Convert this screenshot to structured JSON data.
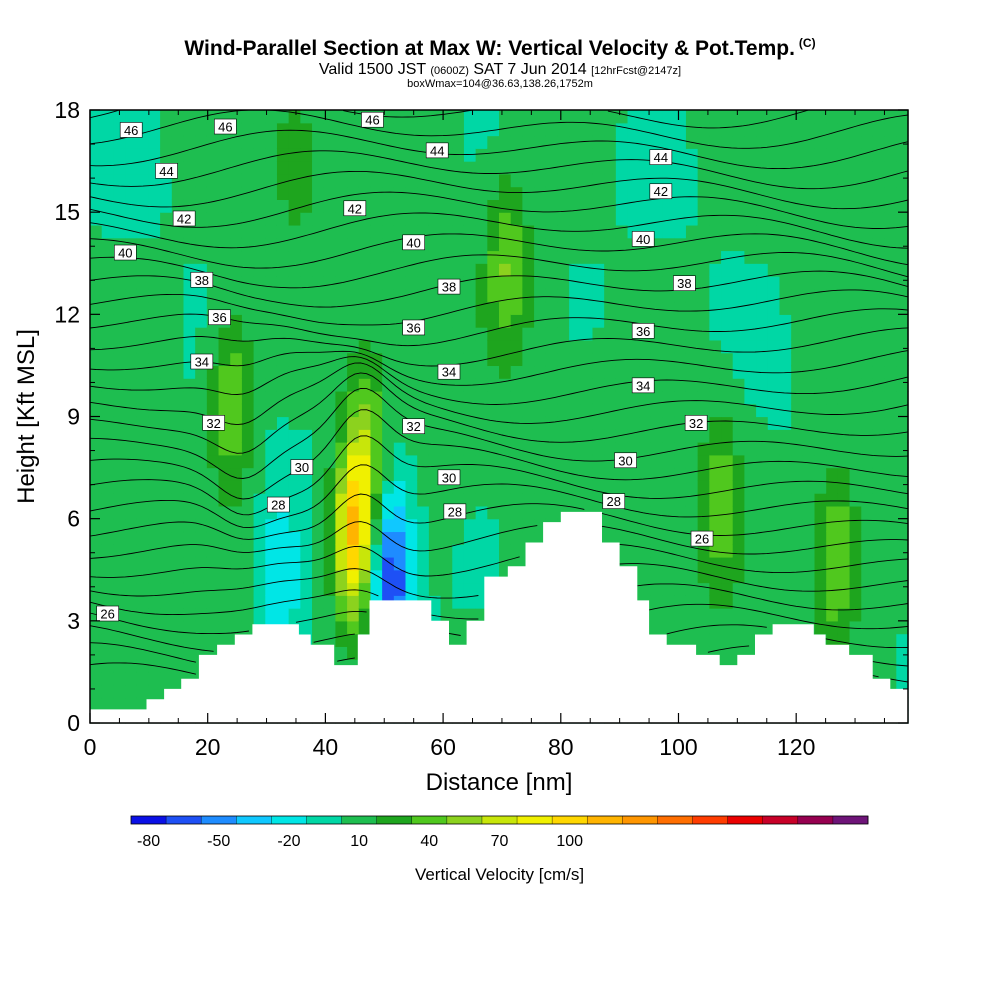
{
  "header": {
    "title": "Wind-Parallel Section at Max W: Vertical Velocity & Pot.Temp.",
    "copyright": "(C)",
    "valid_a": "Valid 1500 JST",
    "valid_zulu": "(0600Z)",
    "valid_b": "SAT 7 Jun 2014",
    "forecast": "[12hrFcst@2147z]",
    "box": "boxWmax=104@36.63,138.26,1752m"
  },
  "chart_data": {
    "type": "heatmap",
    "xlabel": "Distance [nm]",
    "ylabel": "Height [Kft MSL]",
    "xlim": [
      0,
      139
    ],
    "ylim": [
      0,
      18
    ],
    "x_ticks": [
      0,
      20,
      40,
      60,
      80,
      100,
      120
    ],
    "y_ticks": [
      0,
      3,
      6,
      9,
      12,
      15,
      18
    ],
    "colorbar": {
      "title": "Vertical Velocity [cm/s]",
      "tick_values": [
        -80,
        -50,
        -20,
        10,
        40,
        70,
        100
      ],
      "colors": [
        "#0a10e6",
        "#1e50f5",
        "#1e8cff",
        "#10c8ff",
        "#00e6e6",
        "#00d7a5",
        "#1ebe50",
        "#1ea51e",
        "#50c81e",
        "#8cd21e",
        "#c8e60a",
        "#f0f000",
        "#ffd700",
        "#ffb400",
        "#ff9600",
        "#ff6e00",
        "#ff3c00",
        "#eb0000",
        "#c80028",
        "#960050",
        "#6e1478"
      ]
    },
    "theta_contour_labels": [
      {
        "x": 7,
        "y": 17.4,
        "v": "46"
      },
      {
        "x": 23,
        "y": 17.5,
        "v": "46"
      },
      {
        "x": 48,
        "y": 17.7,
        "v": "46"
      },
      {
        "x": 13,
        "y": 16.2,
        "v": "44"
      },
      {
        "x": 59,
        "y": 16.8,
        "v": "44"
      },
      {
        "x": 97,
        "y": 16.6,
        "v": "44"
      },
      {
        "x": 16,
        "y": 14.8,
        "v": "42"
      },
      {
        "x": 45,
        "y": 15.1,
        "v": "42"
      },
      {
        "x": 97,
        "y": 15.6,
        "v": "42"
      },
      {
        "x": 6,
        "y": 13.8,
        "v": "40"
      },
      {
        "x": 55,
        "y": 14.1,
        "v": "40"
      },
      {
        "x": 94,
        "y": 14.2,
        "v": "40"
      },
      {
        "x": 19,
        "y": 13.0,
        "v": "38"
      },
      {
        "x": 61,
        "y": 12.8,
        "v": "38"
      },
      {
        "x": 101,
        "y": 12.9,
        "v": "38"
      },
      {
        "x": 22,
        "y": 11.9,
        "v": "36"
      },
      {
        "x": 55,
        "y": 11.6,
        "v": "36"
      },
      {
        "x": 94,
        "y": 11.5,
        "v": "36"
      },
      {
        "x": 19,
        "y": 10.6,
        "v": "34"
      },
      {
        "x": 61,
        "y": 10.3,
        "v": "34"
      },
      {
        "x": 94,
        "y": 9.9,
        "v": "34"
      },
      {
        "x": 21,
        "y": 8.8,
        "v": "32"
      },
      {
        "x": 55,
        "y": 8.7,
        "v": "32"
      },
      {
        "x": 103,
        "y": 8.8,
        "v": "32"
      },
      {
        "x": 36,
        "y": 7.5,
        "v": "30"
      },
      {
        "x": 61,
        "y": 7.2,
        "v": "30"
      },
      {
        "x": 91,
        "y": 7.7,
        "v": "30"
      },
      {
        "x": 32,
        "y": 6.4,
        "v": "28"
      },
      {
        "x": 62,
        "y": 6.2,
        "v": "28"
      },
      {
        "x": 89,
        "y": 6.5,
        "v": "28"
      },
      {
        "x": 3,
        "y": 3.2,
        "v": "26"
      },
      {
        "x": 104,
        "y": 5.4,
        "v": "26"
      }
    ],
    "terrain_profile": [
      [
        0,
        0.4
      ],
      [
        9.6,
        0.4
      ],
      [
        9.6,
        0.7
      ],
      [
        12.6,
        0.7
      ],
      [
        12.6,
        1.0
      ],
      [
        15.5,
        1.0
      ],
      [
        15.5,
        1.3
      ],
      [
        18.5,
        1.3
      ],
      [
        18.5,
        2.0
      ],
      [
        21.6,
        2.0
      ],
      [
        21.6,
        2.3
      ],
      [
        24.6,
        2.3
      ],
      [
        24.6,
        2.6
      ],
      [
        27.6,
        2.6
      ],
      [
        27.6,
        2.9
      ],
      [
        35.5,
        2.9
      ],
      [
        35.5,
        2.6
      ],
      [
        37.5,
        2.6
      ],
      [
        37.5,
        2.3
      ],
      [
        41.5,
        2.3
      ],
      [
        41.5,
        1.7
      ],
      [
        45.5,
        1.7
      ],
      [
        45.5,
        2.6
      ],
      [
        47.5,
        2.6
      ],
      [
        47.5,
        3.6
      ],
      [
        58,
        3.6
      ],
      [
        58,
        3.0
      ],
      [
        61,
        3.0
      ],
      [
        61,
        2.3
      ],
      [
        64,
        2.3
      ],
      [
        64,
        3.0
      ],
      [
        67,
        3.0
      ],
      [
        67,
        4.3
      ],
      [
        71,
        4.3
      ],
      [
        71,
        4.6
      ],
      [
        74,
        4.6
      ],
      [
        74,
        5.3
      ],
      [
        77,
        5.3
      ],
      [
        77,
        5.9
      ],
      [
        80,
        5.9
      ],
      [
        80,
        6.2
      ],
      [
        87,
        6.2
      ],
      [
        87,
        5.3
      ],
      [
        90,
        5.3
      ],
      [
        90,
        4.6
      ],
      [
        93,
        4.6
      ],
      [
        93,
        3.6
      ],
      [
        95,
        3.6
      ],
      [
        95,
        2.6
      ],
      [
        98,
        2.6
      ],
      [
        98,
        2.3
      ],
      [
        103,
        2.3
      ],
      [
        103,
        2.0
      ],
      [
        107,
        2.0
      ],
      [
        107,
        1.7
      ],
      [
        110,
        1.7
      ],
      [
        110,
        2.0
      ],
      [
        113,
        2.0
      ],
      [
        113,
        2.6
      ],
      [
        116,
        2.6
      ],
      [
        116,
        2.9
      ],
      [
        123,
        2.9
      ],
      [
        123,
        2.6
      ],
      [
        125,
        2.6
      ],
      [
        125,
        2.3
      ],
      [
        129,
        2.3
      ],
      [
        129,
        2.0
      ],
      [
        133,
        2.0
      ],
      [
        133,
        1.3
      ],
      [
        136,
        1.3
      ],
      [
        136,
        1.0
      ],
      [
        139,
        1.0
      ]
    ],
    "w_centers": [
      {
        "x": 45,
        "y": 5.5,
        "w": 105
      },
      {
        "x": 47,
        "y": 8.5,
        "w": 40
      },
      {
        "x": 51,
        "y": 4.3,
        "w": -80
      },
      {
        "x": 24,
        "y": 9.5,
        "w": 45
      },
      {
        "x": 32,
        "y": 4.0,
        "w": -30
      },
      {
        "x": 71,
        "y": 13.5,
        "w": 40
      },
      {
        "x": 107,
        "y": 6.5,
        "w": 40
      },
      {
        "x": 127,
        "y": 5.0,
        "w": 50
      },
      {
        "x": 35,
        "y": 16.5,
        "w": 20
      }
    ]
  }
}
